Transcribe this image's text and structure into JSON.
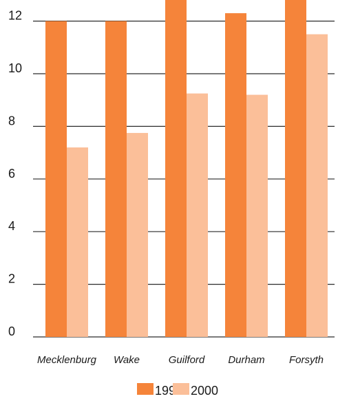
{
  "chart_data": {
    "type": "bar",
    "title": "",
    "xlabel": "",
    "ylabel": "",
    "categories": [
      "Mecklenburg",
      "Wake",
      "Guilford",
      "Durham",
      "Forsyth"
    ],
    "series": [
      {
        "name": "1990",
        "color": "#f5843a",
        "values": [
          12.0,
          12.0,
          13.0,
          12.3,
          13.0
        ]
      },
      {
        "name": "2000",
        "color": "#fbbf99",
        "values": [
          7.2,
          7.75,
          9.25,
          9.2,
          11.5
        ]
      }
    ],
    "yticks": [
      "0",
      "2",
      "4",
      "6",
      "8",
      "10",
      "12"
    ],
    "ylim": [
      0,
      13
    ],
    "grid": true,
    "legend": "bottom-center"
  }
}
